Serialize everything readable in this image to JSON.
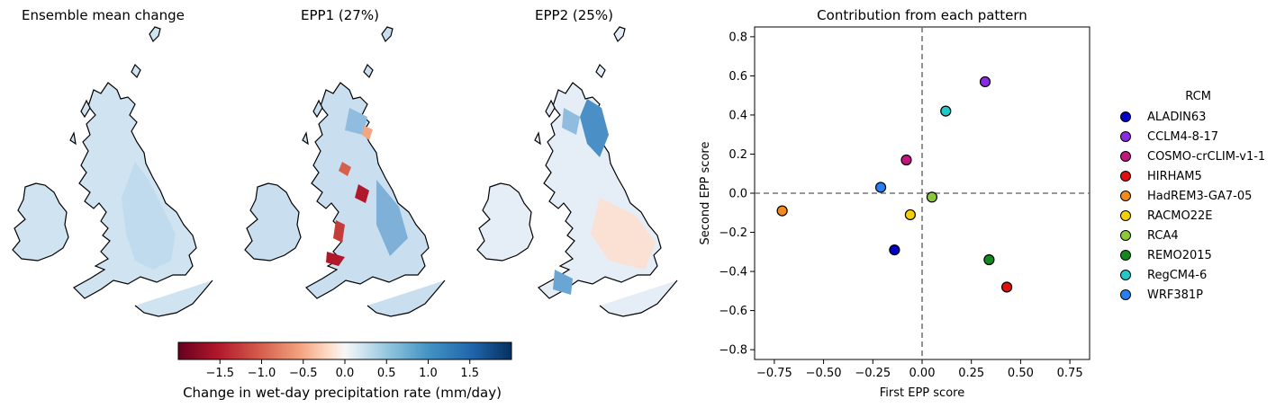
{
  "chart_data": [
    {
      "type": "heatmap",
      "title": "Ensemble mean change",
      "description_values": {
        "typical_change": 0.3,
        "range": [
          0.0,
          0.6
        ]
      }
    },
    {
      "type": "heatmap",
      "title": "EPP1 (27%)",
      "description_values": {
        "typical_change": 0.3,
        "range": [
          -1.6,
          1.0
        ]
      }
    },
    {
      "type": "heatmap",
      "title": "EPP2 (25%)",
      "description_values": {
        "typical_change": 0.1,
        "range": [
          -0.4,
          1.2
        ]
      }
    },
    {
      "type": "colorbar",
      "label": "Change in wet-day precipitation rate (mm/day)",
      "range": [
        -2.0,
        2.0
      ],
      "ticks": [
        "−1.5",
        "−1.0",
        "−0.5",
        "0.0",
        "0.5",
        "1.0",
        "1.5"
      ],
      "tick_values": [
        -1.5,
        -1.0,
        -0.5,
        0.0,
        0.5,
        1.0,
        1.5
      ],
      "colormap": "RdBu"
    },
    {
      "type": "scatter",
      "title": "Contribution from each pattern",
      "xlabel": "First EPP score",
      "ylabel": "Second EPP score",
      "xlim": [
        -0.85,
        0.85
      ],
      "ylim": [
        -0.85,
        0.85
      ],
      "xticks": [
        "−0.75",
        "−0.50",
        "−0.25",
        "0.00",
        "0.25",
        "0.50",
        "0.75"
      ],
      "xtick_values": [
        -0.75,
        -0.5,
        -0.25,
        0.0,
        0.25,
        0.5,
        0.75
      ],
      "yticks": [
        "−0.8",
        "−0.6",
        "−0.4",
        "−0.2",
        "0.0",
        "0.2",
        "0.4",
        "0.6",
        "0.8"
      ],
      "ytick_values": [
        -0.8,
        -0.6,
        -0.4,
        -0.2,
        0.0,
        0.2,
        0.4,
        0.6,
        0.8
      ],
      "reference_lines": {
        "x": 0.0,
        "y": 0.0,
        "style": "dashed"
      },
      "legend_title": "RCM",
      "legend_placement": "right-outside",
      "points": [
        {
          "name": "ALADIN63",
          "x": -0.14,
          "y": -0.29,
          "color": "#0000c8"
        },
        {
          "name": "CCLM4-8-17",
          "x": 0.32,
          "y": 0.57,
          "color": "#8a2be2"
        },
        {
          "name": "COSMO-crCLIM-v1-1",
          "x": -0.08,
          "y": 0.17,
          "color": "#c0187c"
        },
        {
          "name": "HIRHAM5",
          "x": 0.43,
          "y": -0.48,
          "color": "#e01010"
        },
        {
          "name": "HadREM3-GA7-05",
          "x": -0.71,
          "y": -0.09,
          "color": "#f08c1e"
        },
        {
          "name": "RACMO22E",
          "x": -0.06,
          "y": -0.11,
          "color": "#f5d00a"
        },
        {
          "name": "RCA4",
          "x": 0.05,
          "y": -0.02,
          "color": "#8cc83c"
        },
        {
          "name": "REMO2015",
          "x": 0.34,
          "y": -0.34,
          "color": "#12881e"
        },
        {
          "name": "RegCM4-6",
          "x": 0.12,
          "y": 0.42,
          "color": "#20c8c8"
        },
        {
          "name": "WRF381P",
          "x": -0.21,
          "y": 0.03,
          "color": "#2880f0"
        }
      ]
    }
  ]
}
